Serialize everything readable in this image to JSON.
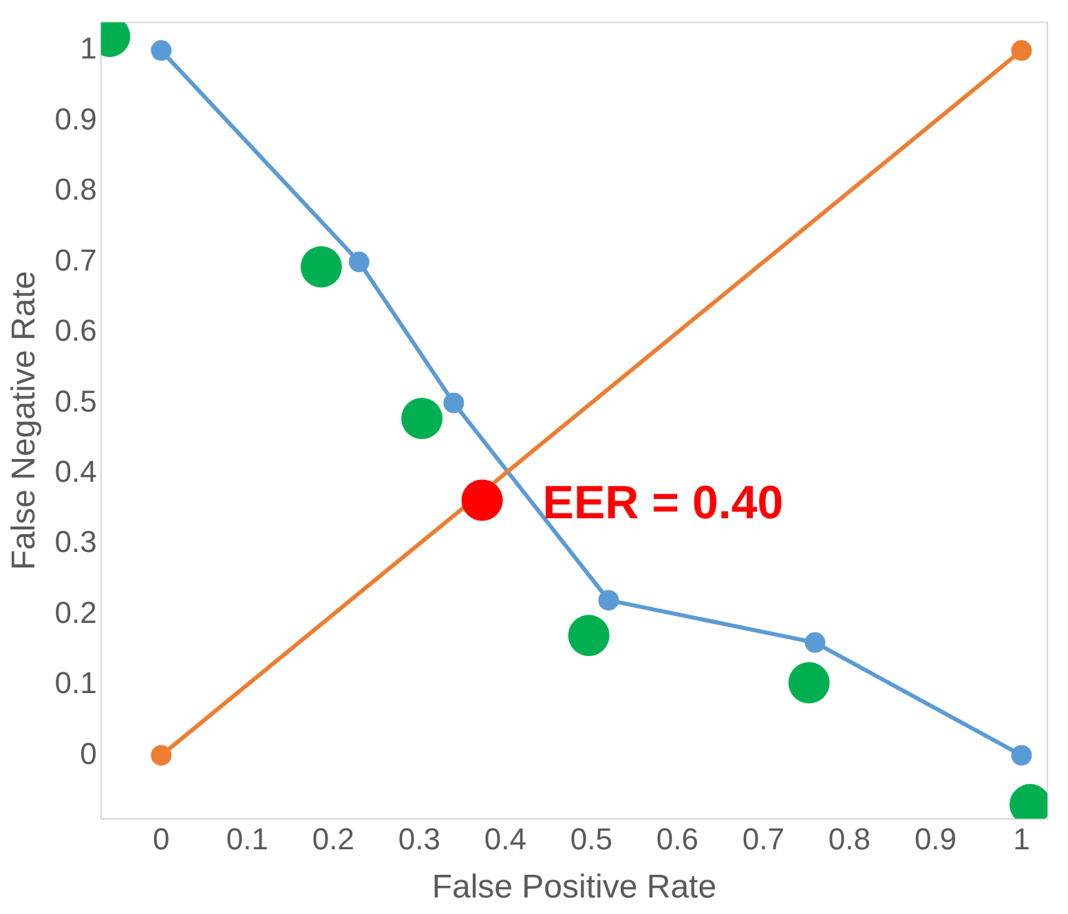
{
  "chart_data": {
    "type": "line",
    "xlabel": "False Positive Rate",
    "ylabel": "False Negative Rate",
    "xlim": [
      -0.07,
      1.03
    ],
    "ylim": [
      -0.09,
      1.04
    ],
    "xticks": [
      0,
      0.1,
      0.2,
      0.3,
      0.4,
      0.5,
      0.6,
      0.7,
      0.8,
      0.9,
      1
    ],
    "yticks": [
      0,
      0.1,
      0.2,
      0.3,
      0.4,
      0.5,
      0.6,
      0.7,
      0.8,
      0.9,
      1
    ],
    "grid": false,
    "legend": false,
    "marker": "circle",
    "series": [
      {
        "color": "#5b9bd5",
        "x": [
          0,
          0.23,
          0.34,
          0.52,
          0.76,
          1
        ],
        "values": [
          1,
          0.7,
          0.5,
          0.22,
          0.16,
          0
        ]
      },
      {
        "color": "#ed7d31",
        "x": [
          0,
          1
        ],
        "values": [
          0,
          1
        ]
      },
      {
        "type": "scatter",
        "color": "#00b050",
        "x": [
          -0.06,
          0.186,
          0.303,
          0.497,
          0.753,
          1.01
        ],
        "values": [
          1.02,
          0.693,
          0.478,
          0.17,
          0.103,
          -0.07
        ]
      },
      {
        "type": "scatter",
        "color": "#ff0000",
        "x": [
          0.373
        ],
        "values": [
          0.362
        ]
      }
    ],
    "annotations": [
      {
        "text": "EER = 0.40",
        "x": 0.373,
        "y": 0.362
      }
    ]
  }
}
